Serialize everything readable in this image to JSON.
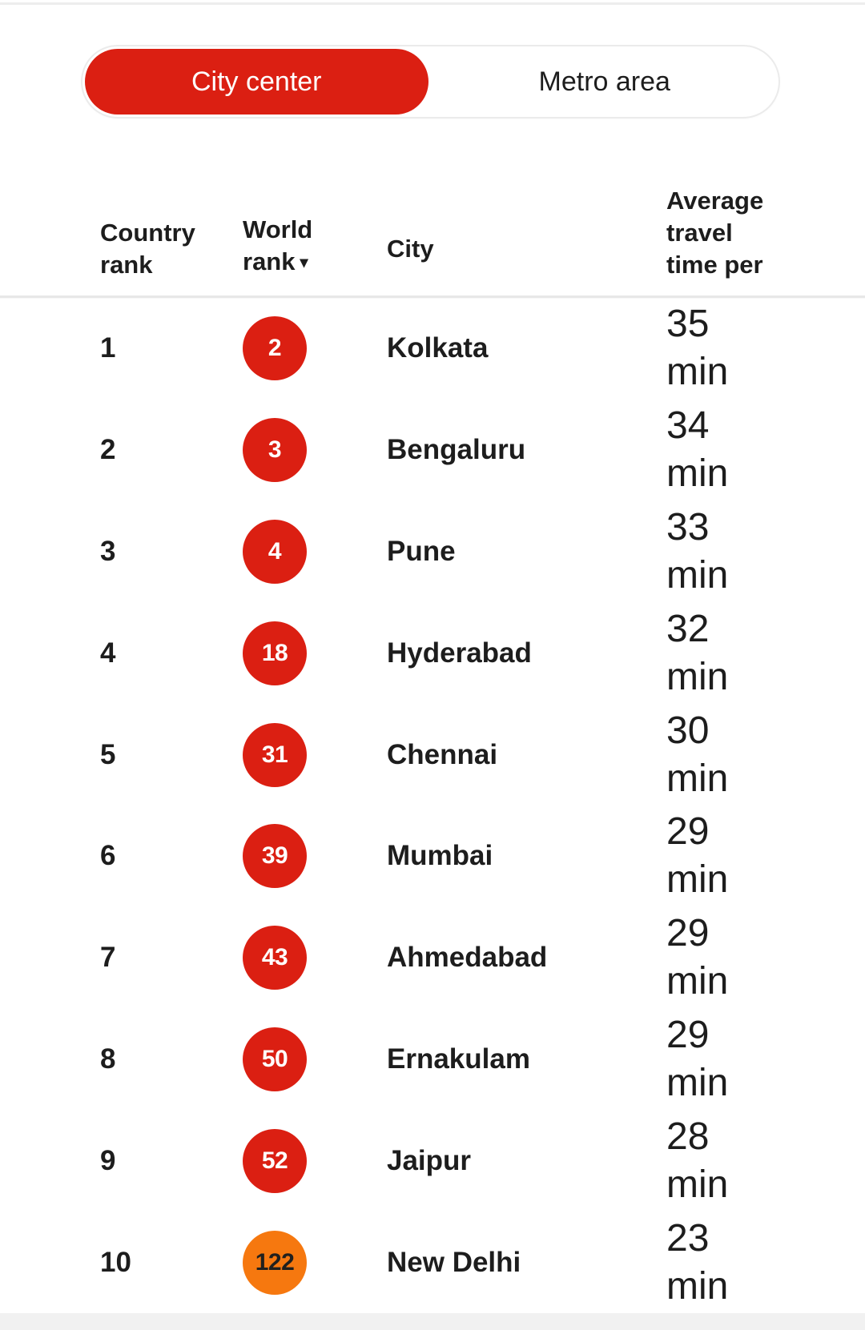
{
  "theme": {
    "accent_red": "#DB1F12",
    "accent_orange": "#F6780F",
    "text_dark": "#1D1D1D",
    "separator": "#E8E8E8",
    "footer_bar": "#F1F1F1",
    "toggle_border": "#EBEBEB"
  },
  "toggle": {
    "options": [
      {
        "label": "City center",
        "selected": true
      },
      {
        "label": "Metro area",
        "selected": false
      }
    ]
  },
  "table": {
    "headers": {
      "country_rank_lines": [
        "Country",
        "rank"
      ],
      "world_rank_lines": [
        "World",
        "rank"
      ],
      "sort_arrow": "▾",
      "city": "City",
      "travel_time_lines": [
        "Average",
        "travel",
        "time per"
      ]
    },
    "rows": [
      {
        "country_rank": "1",
        "world_rank": "2",
        "badge_color": "red",
        "city": "Kolkata",
        "time_value": "35",
        "time_unit": "min"
      },
      {
        "country_rank": "2",
        "world_rank": "3",
        "badge_color": "red",
        "city": "Bengaluru",
        "time_value": "34",
        "time_unit": "min"
      },
      {
        "country_rank": "3",
        "world_rank": "4",
        "badge_color": "red",
        "city": "Pune",
        "time_value": "33",
        "time_unit": "min"
      },
      {
        "country_rank": "4",
        "world_rank": "18",
        "badge_color": "red",
        "city": "Hyderabad",
        "time_value": "32",
        "time_unit": "min"
      },
      {
        "country_rank": "5",
        "world_rank": "31",
        "badge_color": "red",
        "city": "Chennai",
        "time_value": "30",
        "time_unit": "min"
      },
      {
        "country_rank": "6",
        "world_rank": "39",
        "badge_color": "red",
        "city": "Mumbai",
        "time_value": "29",
        "time_unit": "min"
      },
      {
        "country_rank": "7",
        "world_rank": "43",
        "badge_color": "red",
        "city": "Ahmedabad",
        "time_value": "29",
        "time_unit": "min"
      },
      {
        "country_rank": "8",
        "world_rank": "50",
        "badge_color": "red",
        "city": "Ernakulam",
        "time_value": "29",
        "time_unit": "min"
      },
      {
        "country_rank": "9",
        "world_rank": "52",
        "badge_color": "red",
        "city": "Jaipur",
        "time_value": "28",
        "time_unit": "min"
      },
      {
        "country_rank": "10",
        "world_rank": "122",
        "badge_color": "orange",
        "city": "New Delhi",
        "time_value": "23",
        "time_unit": "min"
      }
    ]
  }
}
